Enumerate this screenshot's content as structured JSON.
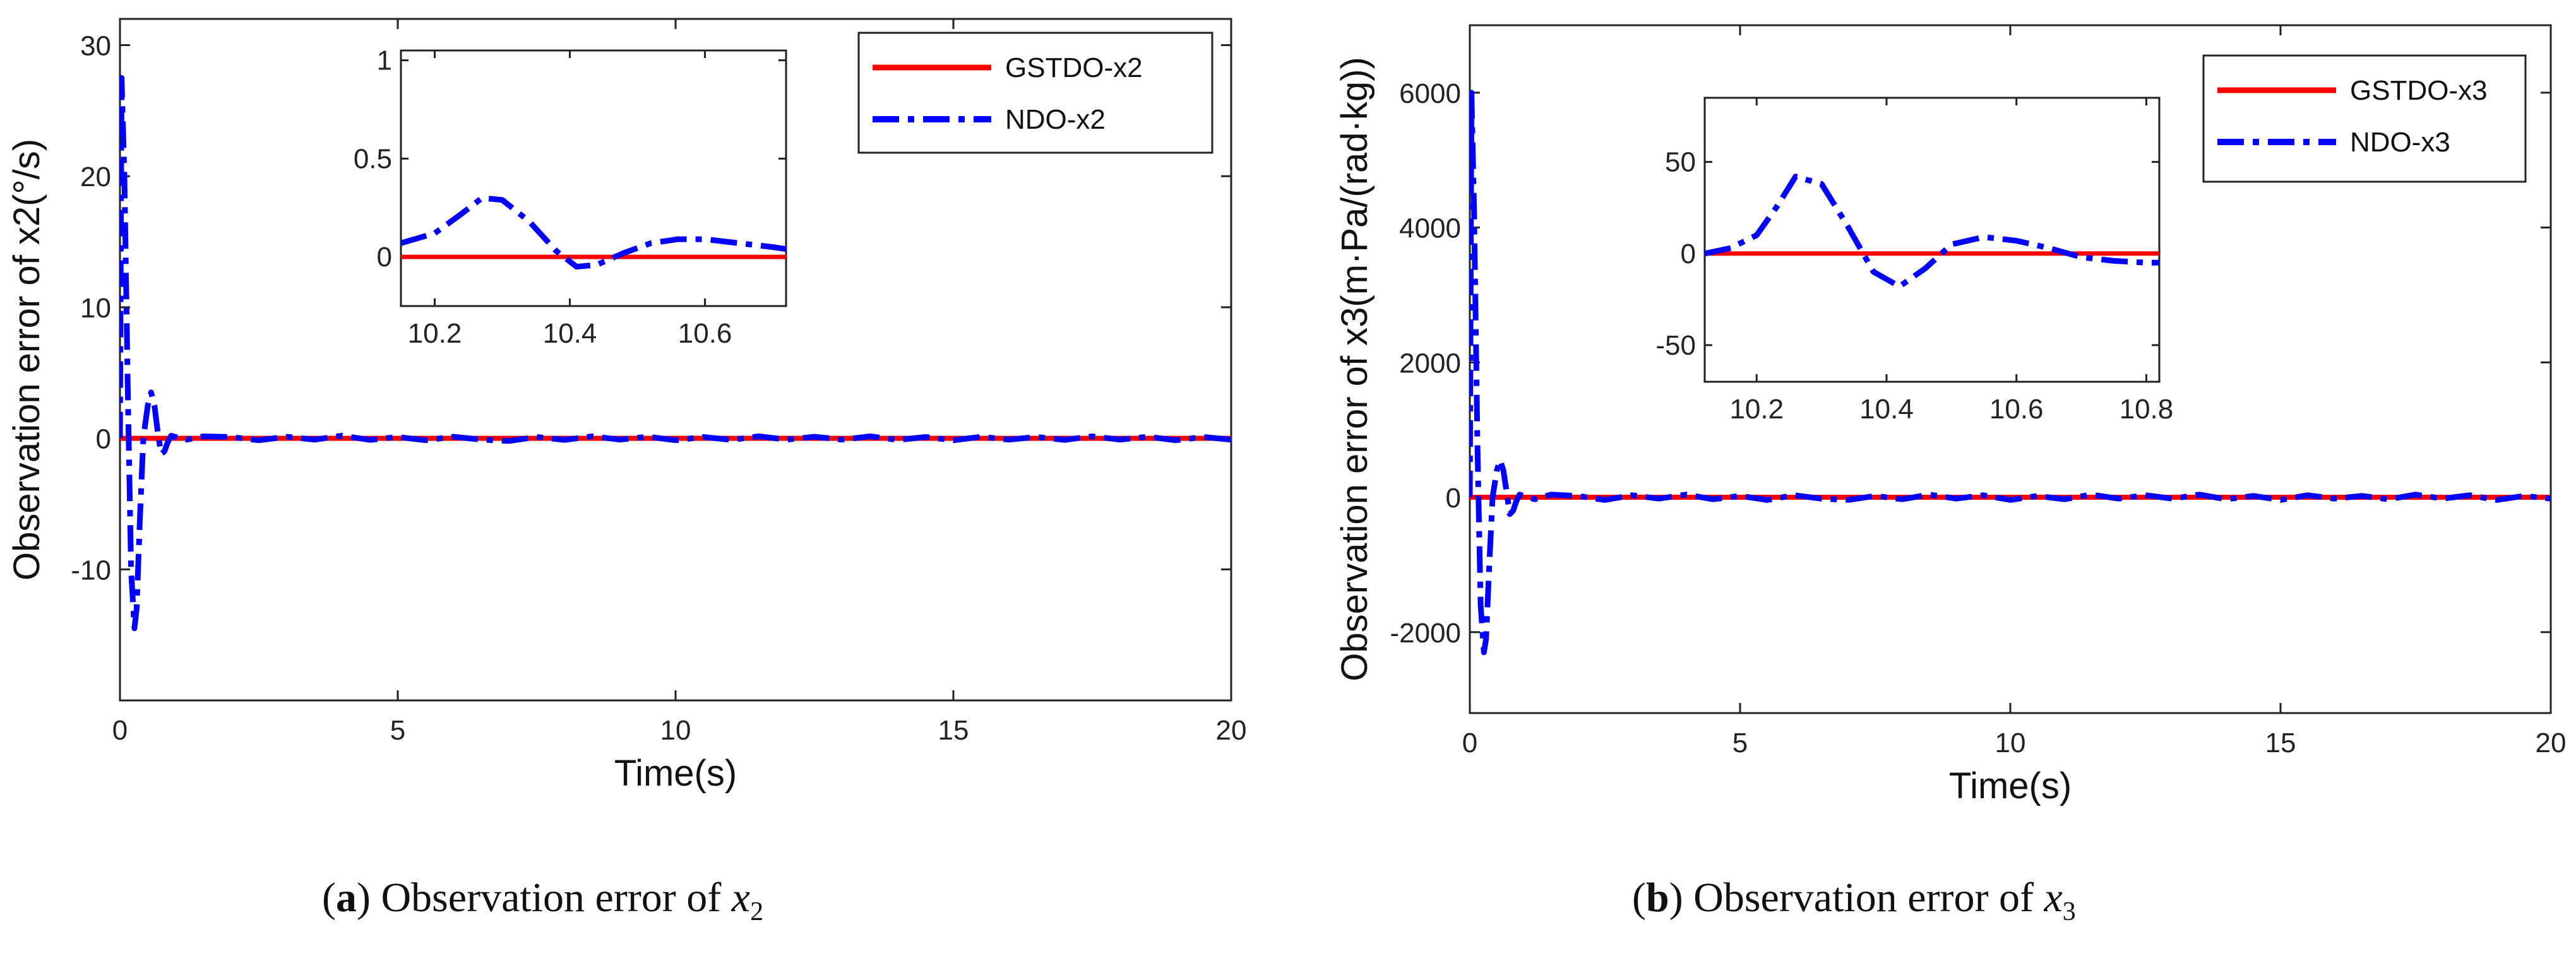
{
  "colors": {
    "gstdo": "#ff0000",
    "ndo": "#0000ff",
    "axis": "#222222"
  },
  "captions": [
    {
      "open": "(",
      "letter": "a",
      "text": ") Observation error of ",
      "var": "x",
      "sub": "2"
    },
    {
      "open": "(",
      "letter": "b",
      "text": ") Observation error of ",
      "var": "x",
      "sub": "3"
    }
  ],
  "chart_data": [
    {
      "type": "line",
      "xlabel": "Time(s)",
      "ylabel": "Observation error of x2(°/s)",
      "xlim": [
        0,
        20
      ],
      "ylim": [
        -20,
        32
      ],
      "xticks": [
        0,
        5,
        10,
        15,
        20
      ],
      "yticks": [
        -10,
        0,
        10,
        20,
        30
      ],
      "legend": {
        "position": "top-right",
        "entries": [
          "GSTDO-x2",
          "NDO-x2"
        ]
      },
      "series": [
        {
          "name": "GSTDO-x2",
          "style": "solid",
          "x": [
            0,
            20
          ],
          "y": [
            0,
            0
          ]
        },
        {
          "name": "NDO-x2",
          "style": "dash-dot",
          "x": [
            0,
            0.03,
            0.08,
            0.14,
            0.2,
            0.26,
            0.3,
            0.36,
            0.42,
            0.5,
            0.56,
            0.62,
            0.68,
            0.74,
            0.8,
            0.86,
            0.92,
            1.0,
            1.2,
            1.5,
            2,
            2.5,
            3,
            3.5,
            4,
            4.5,
            5,
            5.5,
            6,
            6.5,
            7,
            7.5,
            8,
            8.5,
            9,
            9.5,
            10,
            10.5,
            11,
            11.5,
            12,
            12.5,
            13,
            13.5,
            14,
            14.5,
            15,
            15.5,
            16,
            16.5,
            17,
            17.5,
            18,
            18.5,
            19,
            19.5,
            20
          ],
          "y": [
            0,
            27.5,
            20,
            4,
            -10,
            -14.5,
            -13,
            -6,
            0,
            2.5,
            3.5,
            2.5,
            0.5,
            -1.2,
            -1.0,
            -0.3,
            0.2,
            0.1,
            -0.1,
            0.15,
            0.1,
            -0.15,
            0.12,
            -0.1,
            0.2,
            -0.12,
            0.1,
            -0.15,
            0.12,
            -0.1,
            -0.2,
            0.1,
            -0.12,
            0.15,
            -0.1,
            0.12,
            -0.15,
            0.1,
            -0.12,
            0.15,
            -0.1,
            0.12,
            -0.1,
            0.15,
            -0.12,
            0.1,
            -0.15,
            0.12,
            -0.1,
            0.1,
            -0.12,
            0.15,
            -0.1,
            0.12,
            -0.15,
            0.1,
            -0.1
          ]
        }
      ],
      "inset": {
        "xlim": [
          10.15,
          10.72
        ],
        "ylim": [
          -0.25,
          1.05
        ],
        "xticks": [
          10.2,
          10.4,
          10.6
        ],
        "xtick_labels": [
          "10.2",
          "10.4",
          "10.6"
        ],
        "yticks": [
          0,
          0.5,
          1
        ],
        "ytick_labels": [
          "0",
          "0.5",
          "1"
        ],
        "series": [
          {
            "name": "GSTDO-x2",
            "x": [
              10.15,
              10.72
            ],
            "y": [
              0,
              0
            ]
          },
          {
            "name": "NDO-x2",
            "x": [
              10.15,
              10.2,
              10.24,
              10.27,
              10.3,
              10.34,
              10.38,
              10.41,
              10.44,
              10.48,
              10.52,
              10.56,
              10.6,
              10.65,
              10.7,
              10.72
            ],
            "y": [
              0.07,
              0.12,
              0.22,
              0.3,
              0.29,
              0.18,
              0.03,
              -0.05,
              -0.04,
              0.02,
              0.07,
              0.09,
              0.09,
              0.07,
              0.05,
              0.04
            ]
          }
        ]
      }
    },
    {
      "type": "line",
      "xlabel": "Time(s)",
      "ylabel": "Observation error of x3(m·Pa/(rad·kg))",
      "xlim": [
        0,
        20
      ],
      "ylim": [
        -3200,
        7000
      ],
      "xticks": [
        0,
        5,
        10,
        15,
        20
      ],
      "yticks": [
        -2000,
        0,
        2000,
        4000,
        6000
      ],
      "legend": {
        "position": "top-right",
        "entries": [
          "GSTDO-x3",
          "NDO-x3"
        ]
      },
      "series": [
        {
          "name": "GSTDO-x3",
          "style": "solid",
          "x": [
            0,
            20
          ],
          "y": [
            0,
            0
          ]
        },
        {
          "name": "NDO-x3",
          "style": "dash-dot",
          "x": [
            0,
            0.03,
            0.08,
            0.14,
            0.2,
            0.26,
            0.3,
            0.36,
            0.42,
            0.5,
            0.56,
            0.62,
            0.68,
            0.74,
            0.8,
            0.86,
            0.92,
            1.0,
            1.2,
            1.5,
            2,
            2.5,
            3,
            3.5,
            4,
            4.5,
            5,
            5.5,
            6,
            6.5,
            7,
            7.5,
            8,
            8.5,
            9,
            9.5,
            10,
            10.5,
            11,
            11.5,
            12,
            12.5,
            13,
            13.5,
            14,
            14.5,
            15,
            15.5,
            16,
            16.5,
            17,
            17.5,
            18,
            18.5,
            19,
            19.5,
            20
          ],
          "y": [
            0,
            6000,
            4200,
            800,
            -1600,
            -2300,
            -2100,
            -1000,
            0,
            400,
            550,
            400,
            80,
            -250,
            -200,
            -60,
            40,
            20,
            -30,
            40,
            20,
            -40,
            30,
            -20,
            40,
            -30,
            20,
            -40,
            30,
            -20,
            -40,
            20,
            -30,
            40,
            -20,
            30,
            -40,
            20,
            -30,
            40,
            -20,
            30,
            -20,
            40,
            -30,
            20,
            -40,
            30,
            -20,
            20,
            -30,
            40,
            -20,
            30,
            -40,
            20,
            -20
          ]
        }
      ],
      "inset": {
        "xlim": [
          10.12,
          10.82
        ],
        "ylim": [
          -70,
          85
        ],
        "xticks": [
          10.2,
          10.4,
          10.6,
          10.8
        ],
        "xtick_labels": [
          "10.2",
          "10.4",
          "10.6",
          "10.8"
        ],
        "yticks": [
          -50,
          0,
          50
        ],
        "ytick_labels": [
          "-50",
          "0",
          "50"
        ],
        "series": [
          {
            "name": "GSTDO-x3",
            "x": [
              10.12,
              10.82
            ],
            "y": [
              0,
              0
            ]
          },
          {
            "name": "NDO-x3",
            "x": [
              10.12,
              10.16,
              10.2,
              10.23,
              10.26,
              10.3,
              10.34,
              10.38,
              10.42,
              10.46,
              10.5,
              10.55,
              10.6,
              10.65,
              10.7,
              10.75,
              10.8,
              10.82
            ],
            "y": [
              0,
              3,
              10,
              25,
              42,
              38,
              15,
              -10,
              -18,
              -8,
              5,
              9,
              7,
              3,
              -2,
              -4,
              -5,
              -5
            ]
          }
        ]
      }
    }
  ]
}
